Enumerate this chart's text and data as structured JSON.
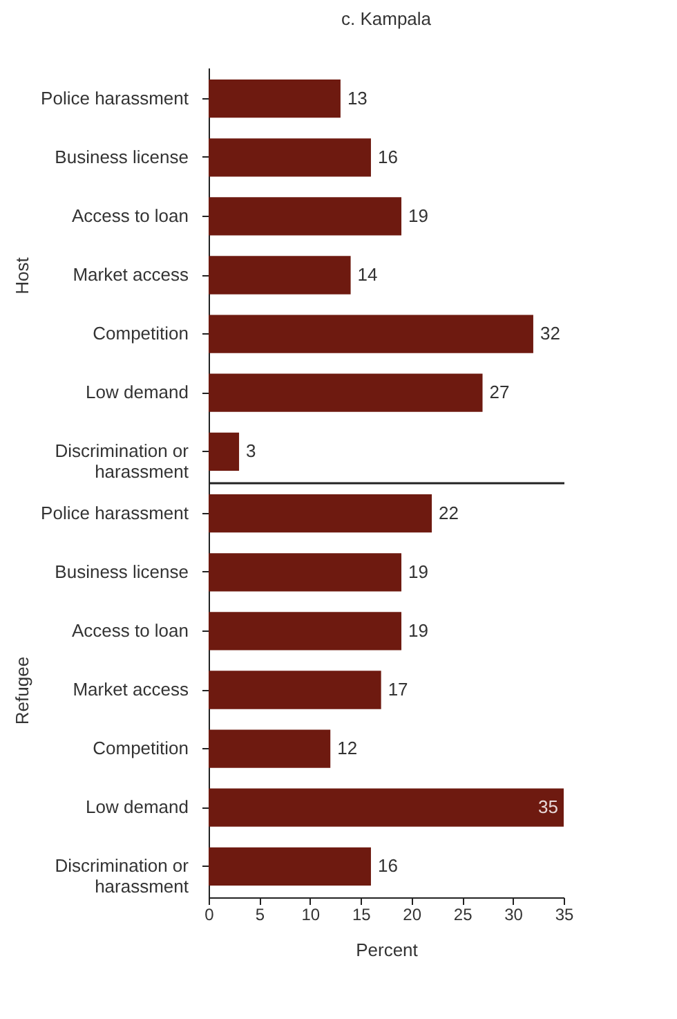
{
  "chart_data": [
    {
      "type": "bar",
      "orientation": "horizontal",
      "title": "c. Kampala",
      "ylabel": "Host",
      "categories": [
        "Police harassment",
        "Business license",
        "Access to loan",
        "Market access",
        "Competition",
        "Low demand",
        "Discrimination or harassment"
      ],
      "series": [
        {
          "color": "#6e1a10",
          "values": [
            13,
            16,
            19,
            14,
            32,
            27,
            3
          ]
        }
      ],
      "xlim": [
        0,
        35
      ],
      "tick_labels": "y",
      "data_labels": true,
      "grid": false
    },
    {
      "type": "bar",
      "orientation": "horizontal",
      "ylabel": "Refugee",
      "xlabel": "Percent",
      "categories": [
        "Police harassment",
        "Business license",
        "Access to loan",
        "Market access",
        "Competition",
        "Low demand",
        "Discrimination or harassment"
      ],
      "series": [
        {
          "color": "#6e1a10",
          "values": [
            22,
            19,
            19,
            17,
            12,
            35,
            16
          ]
        }
      ],
      "xlim": [
        0,
        35
      ],
      "xticks": [
        0,
        5,
        10,
        15,
        20,
        25,
        30,
        35
      ],
      "data_labels": true,
      "grid": false
    }
  ]
}
